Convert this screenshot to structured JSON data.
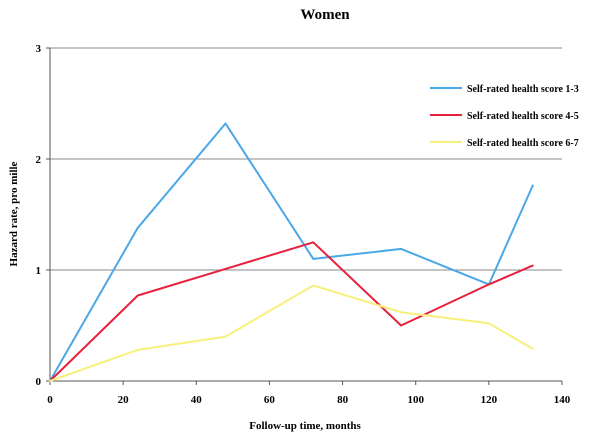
{
  "chart_data": {
    "type": "line",
    "title": "Women",
    "xlabel": "Follow-up time, months",
    "ylabel": "Hazard rate, pro mille",
    "xlim": [
      0,
      140
    ],
    "ylim": [
      0,
      3
    ],
    "xticks": [
      "0",
      "20",
      "40",
      "60",
      "80",
      "100",
      "120",
      "140"
    ],
    "yticks": [
      "0",
      "1",
      "2",
      "3"
    ],
    "grid": "horizontal",
    "legend_position": "right",
    "series": [
      {
        "name": "Self-rated health score 1-3",
        "color": "#4aa8e8",
        "x": [
          0,
          24,
          48,
          72,
          96,
          120,
          132
        ],
        "y": [
          0,
          1.38,
          2.32,
          1.1,
          1.19,
          0.87,
          1.76
        ]
      },
      {
        "name": "Self-rated health score 4-5",
        "color": "#e8203c",
        "x": [
          0,
          24,
          48,
          72,
          96,
          120,
          132
        ],
        "y": [
          0,
          0.77,
          1.01,
          1.25,
          0.5,
          0.87,
          1.04
        ]
      },
      {
        "name": "Self-rated health score 6-7",
        "color": "#f7f07a",
        "x": [
          0,
          24,
          48,
          72,
          96,
          120,
          132
        ],
        "y": [
          0,
          0.28,
          0.4,
          0.86,
          0.62,
          0.52,
          0.29
        ]
      }
    ]
  }
}
